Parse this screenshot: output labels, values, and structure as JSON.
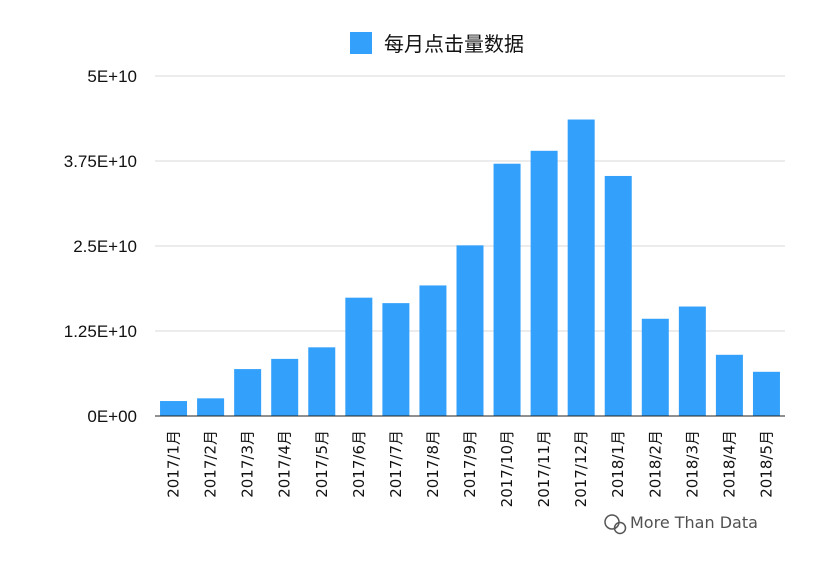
{
  "chart_data": {
    "type": "bar",
    "legend": {
      "label": "每月点击量数据",
      "position": "top-center"
    },
    "categories": [
      "2017/1月",
      "2017/2月",
      "2017/3月",
      "2017/4月",
      "2017/5月",
      "2017/6月",
      "2017/7月",
      "2017/8月",
      "2017/9月",
      "2017/10月",
      "2017/11月",
      "2017/12月",
      "2018/1月",
      "2018/2月",
      "2018/3月",
      "2018/4月",
      "2018/5月"
    ],
    "series": [
      {
        "name": "每月点击量数据",
        "values": [
          2200000000,
          2600000000,
          6900000000,
          8400000000,
          10100000000,
          17400000000,
          16600000000,
          19200000000,
          25100000000,
          37100000000,
          39000000000,
          43600000000,
          35300000000,
          14300000000,
          16100000000,
          9000000000,
          6500000000
        ]
      }
    ],
    "ylim": [
      0,
      50000000000
    ],
    "yticks": [
      {
        "value": 0,
        "label": "0E+00"
      },
      {
        "value": 12500000000,
        "label": "1.25E+10"
      },
      {
        "value": 25000000000,
        "label": "2.5E+10"
      },
      {
        "value": 37500000000,
        "label": "3.75E+10"
      },
      {
        "value": 50000000000,
        "label": "5E+10"
      }
    ],
    "grid": true,
    "colors": {
      "bar": "#33a1fb",
      "grid": "#d9d9d9",
      "axis": "#222222"
    }
  },
  "watermark": {
    "text": "More Than Data",
    "icon": "wechat-icon"
  }
}
